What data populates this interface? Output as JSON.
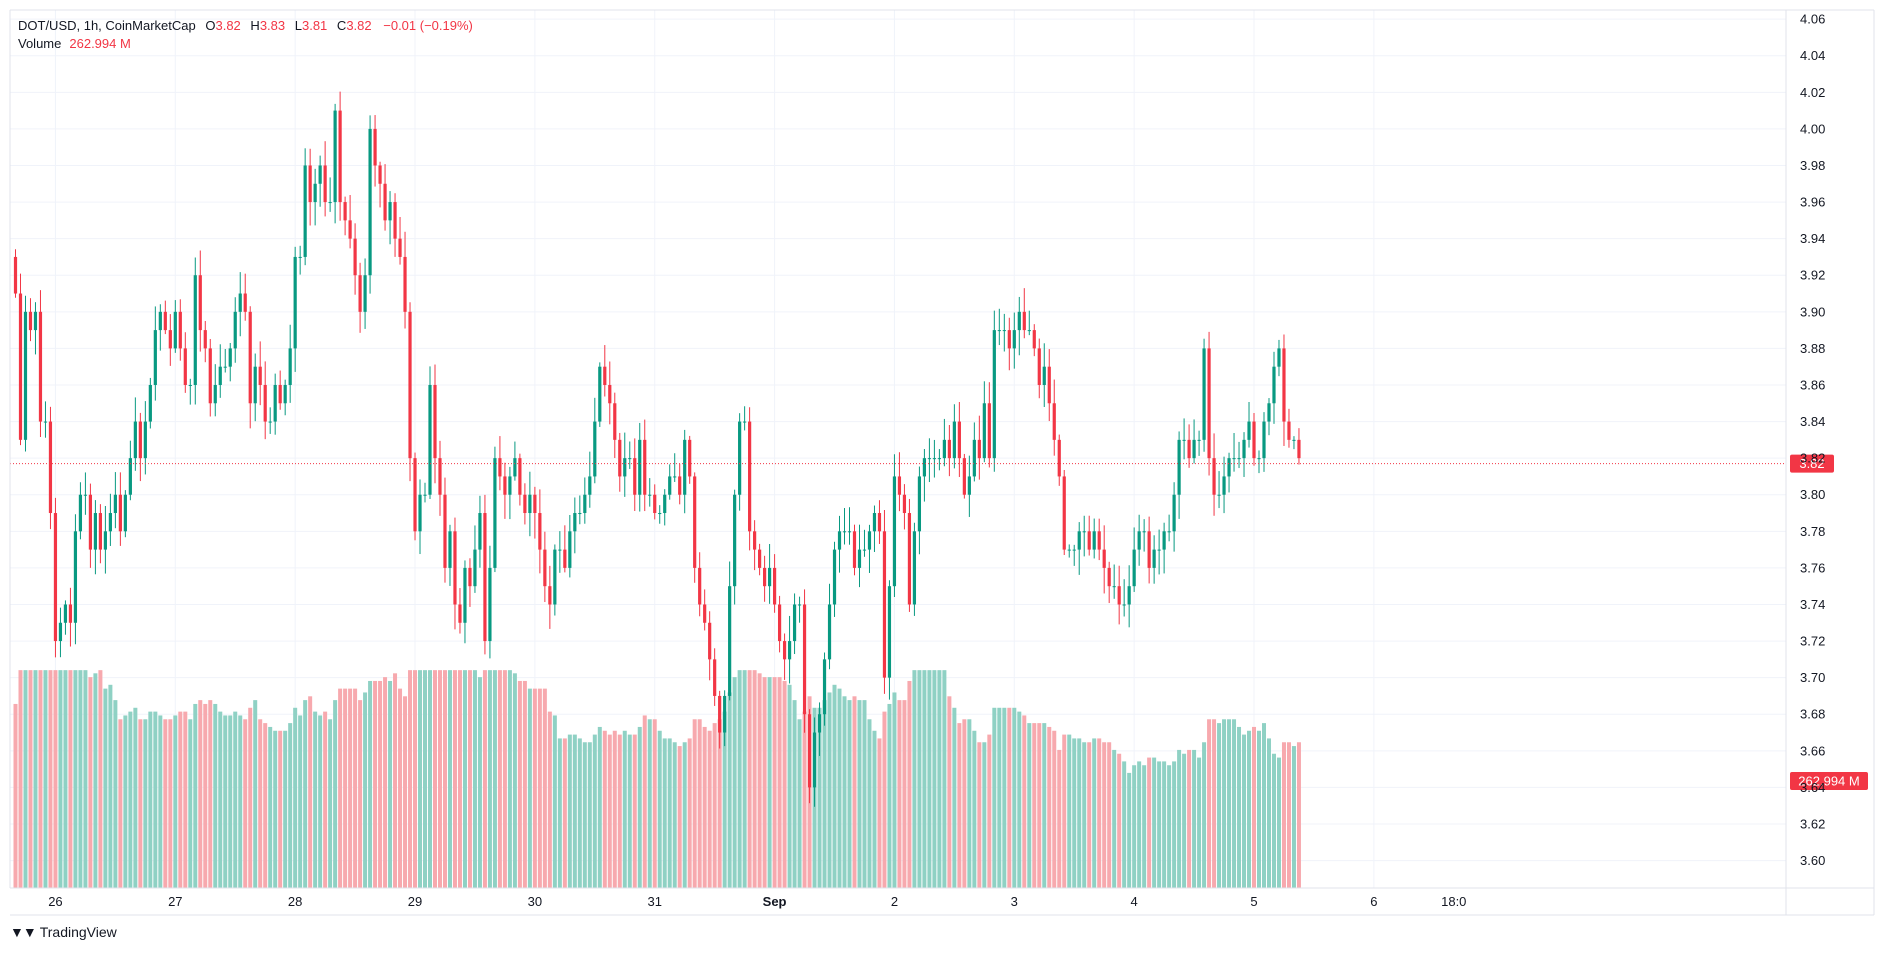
{
  "legend": {
    "symbol": "DOT/USD, 1h, CoinMarketCap",
    "open_label": "O",
    "open": "3.82",
    "high_label": "H",
    "high": "3.83",
    "low_label": "L",
    "low": "3.81",
    "close_label": "C",
    "close": "3.82",
    "change": "−0.01 (−0.19%)"
  },
  "volume_legend": {
    "label": "Volume",
    "value": "262.994 M"
  },
  "price_tag": "3.82",
  "volume_tag": "262.994 M",
  "brand": {
    "logo": "▼▼",
    "name": "TradingView"
  },
  "colors": {
    "up": "#089981",
    "down": "#f23645",
    "up_volume": "#8fd1c4",
    "down_volume": "#f7a9ae",
    "grid": "#f0f3fa",
    "text": "#131722",
    "axis_border": "#e0e3eb"
  },
  "chart_data": {
    "type": "candlestick",
    "title": "DOT/USD, 1h, CoinMarketCap",
    "xlabel": "",
    "ylabel": "",
    "ylim": [
      3.585,
      4.065
    ],
    "y_ticks": [
      "4.06",
      "4.04",
      "4.02",
      "4.00",
      "3.98",
      "3.96",
      "3.94",
      "3.92",
      "3.90",
      "3.88",
      "3.86",
      "3.84",
      "3.82",
      "3.80",
      "3.78",
      "3.76",
      "3.74",
      "3.72",
      "3.70",
      "3.68",
      "3.66",
      "3.64",
      "3.62",
      "3.60"
    ],
    "x_ticks": [
      {
        "label": "26",
        "bold": false,
        "bar": 8
      },
      {
        "label": "27",
        "bold": false,
        "bar": 32
      },
      {
        "label": "28",
        "bold": false,
        "bar": 56
      },
      {
        "label": "29",
        "bold": false,
        "bar": 80
      },
      {
        "label": "30",
        "bold": false,
        "bar": 104
      },
      {
        "label": "31",
        "bold": false,
        "bar": 128
      },
      {
        "label": "Sep",
        "bold": true,
        "bar": 152
      },
      {
        "label": "2",
        "bold": false,
        "bar": 176
      },
      {
        "label": "3",
        "bold": false,
        "bar": 200
      },
      {
        "label": "4",
        "bold": false,
        "bar": 224
      },
      {
        "label": "5",
        "bold": false,
        "bar": 248
      },
      {
        "label": "6",
        "bold": false,
        "bar": 272
      },
      {
        "label": "18:0",
        "bold": false,
        "bar": 288
      }
    ],
    "last_price": 3.817,
    "volume_ylim": [
      0,
      4
    ],
    "series": [
      {
        "name": "DOT/USD",
        "close": [
          3.91,
          3.83,
          3.9,
          3.89,
          3.9,
          3.84,
          3.84,
          3.79,
          3.72,
          3.73,
          3.74,
          3.73,
          3.78,
          3.8,
          3.8,
          3.77,
          3.79,
          3.77,
          3.78,
          3.79,
          3.8,
          3.78,
          3.8,
          3.82,
          3.84,
          3.82,
          3.84,
          3.86,
          3.89,
          3.9,
          3.89,
          3.88,
          3.9,
          3.88,
          3.86,
          3.86,
          3.92,
          3.89,
          3.88,
          3.85,
          3.86,
          3.87,
          3.87,
          3.88,
          3.9,
          3.91,
          3.9,
          3.85,
          3.87,
          3.86,
          3.84,
          3.84,
          3.86,
          3.85,
          3.86,
          3.88,
          3.93,
          3.93,
          3.98,
          3.96,
          3.97,
          3.98,
          3.96,
          3.96,
          4.01,
          3.96,
          3.95,
          3.94,
          3.92,
          3.9,
          3.92,
          4,
          3.98,
          3.97,
          3.95,
          3.96,
          3.94,
          3.93,
          3.9,
          3.82,
          3.78,
          3.8,
          3.8,
          3.86,
          3.82,
          3.8,
          3.76,
          3.78,
          3.74,
          3.73,
          3.76,
          3.75,
          3.77,
          3.79,
          3.72,
          3.76,
          3.82,
          3.81,
          3.8,
          3.81,
          3.82,
          3.8,
          3.79,
          3.8,
          3.79,
          3.77,
          3.75,
          3.74,
          3.77,
          3.77,
          3.76,
          3.78,
          3.79,
          3.79,
          3.8,
          3.81,
          3.84,
          3.87,
          3.86,
          3.85,
          3.83,
          3.81,
          3.82,
          3.82,
          3.8,
          3.83,
          3.8,
          3.8,
          3.79,
          3.79,
          3.8,
          3.81,
          3.81,
          3.8,
          3.83,
          3.81,
          3.76,
          3.74,
          3.73,
          3.71,
          3.69,
          3.67,
          3.69,
          3.75,
          3.8,
          3.84,
          3.84,
          3.78,
          3.77,
          3.76,
          3.75,
          3.76,
          3.74,
          3.72,
          3.71,
          3.72,
          3.74,
          3.74,
          3.68,
          3.64,
          3.67,
          3.68,
          3.71,
          3.74,
          3.77,
          3.78,
          3.78,
          3.78,
          3.76,
          3.77,
          3.77,
          3.78,
          3.79,
          3.78,
          3.7,
          3.75,
          3.81,
          3.8,
          3.79,
          3.74,
          3.78,
          3.81,
          3.82,
          3.82,
          3.82,
          3.82,
          3.83,
          3.82,
          3.84,
          3.82,
          3.8,
          3.81,
          3.83,
          3.82,
          3.85,
          3.82,
          3.89,
          3.89,
          3.89,
          3.88,
          3.89,
          3.9,
          3.89,
          3.89,
          3.88,
          3.86,
          3.87,
          3.85,
          3.83,
          3.81,
          3.77,
          3.77,
          3.77,
          3.78,
          3.78,
          3.77,
          3.78,
          3.77,
          3.76,
          3.75,
          3.75,
          3.74,
          3.74,
          3.75,
          3.77,
          3.78,
          3.78,
          3.76,
          3.77,
          3.77,
          3.78,
          3.78,
          3.8,
          3.83,
          3.83,
          3.82,
          3.83,
          3.83,
          3.88,
          3.82,
          3.8,
          3.8,
          3.81,
          3.82,
          3.82,
          3.82,
          3.83,
          3.84,
          3.82,
          3.82,
          3.84,
          3.85,
          3.87,
          3.88,
          3.84,
          3.83,
          3.83,
          3.82
        ]
      }
    ]
  }
}
